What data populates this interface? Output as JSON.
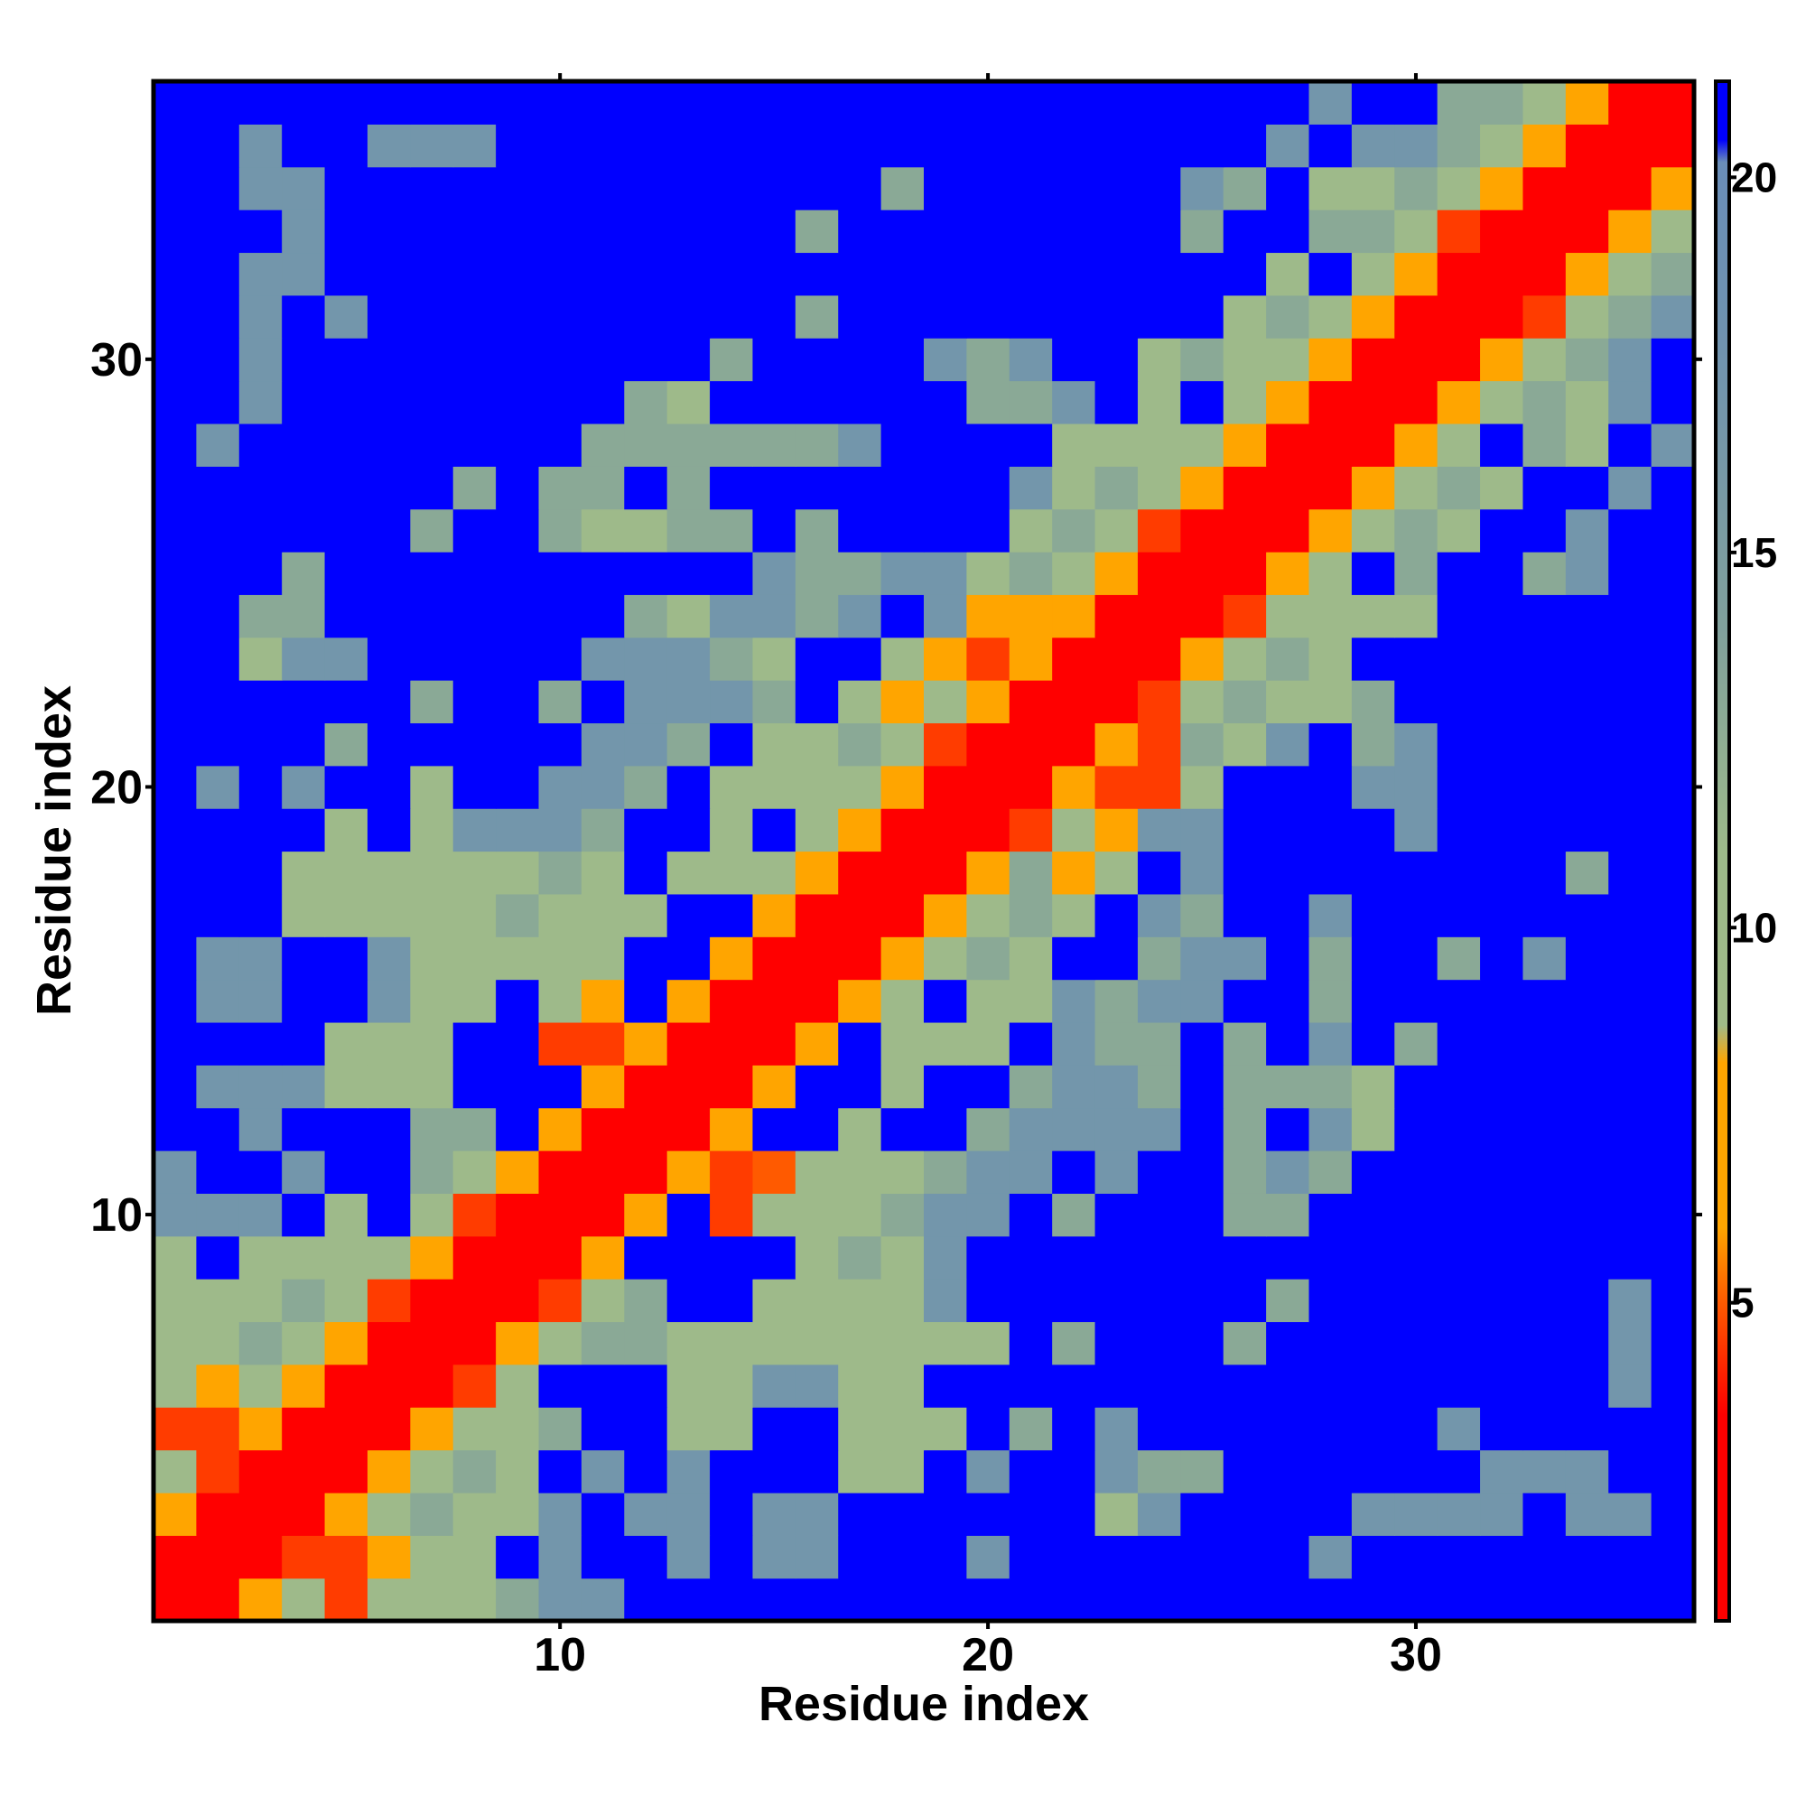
{
  "chart_data": {
    "type": "heatmap",
    "x_label": "Residue index",
    "y_label": "Residue index",
    "x": [
      1,
      2,
      3,
      4,
      5,
      6,
      7,
      8,
      9,
      10,
      11,
      12,
      13,
      14,
      15,
      16,
      17,
      18,
      19,
      20,
      21,
      22,
      23,
      24,
      25,
      26,
      27,
      28,
      29,
      30,
      31,
      32,
      33,
      34,
      35,
      36
    ],
    "y": [
      1,
      2,
      3,
      4,
      5,
      6,
      7,
      8,
      9,
      10,
      11,
      12,
      13,
      14,
      15,
      16,
      17,
      18,
      19,
      20,
      21,
      22,
      23,
      24,
      25,
      26,
      27,
      28,
      29,
      30,
      31,
      32,
      33,
      34,
      35,
      36
    ],
    "xlim": [
      0.5,
      36.5
    ],
    "ylim": [
      0.5,
      36.5
    ],
    "xticks": [
      10,
      20,
      30
    ],
    "yticks": [
      10,
      20,
      30
    ],
    "zlim": [
      0.76,
      21.28
    ],
    "zticks": [
      5,
      10,
      15,
      20
    ],
    "colorscale": [
      [
        0.76,
        "#ff0000"
      ],
      [
        3.5,
        "#ff0000"
      ],
      [
        5,
        "#ff5a00"
      ],
      [
        6,
        "#ffa500"
      ],
      [
        8.2,
        "#ffa500"
      ],
      [
        8.7,
        "#a0bb88"
      ],
      [
        11,
        "#9dba8a"
      ],
      [
        14,
        "#80a09c"
      ],
      [
        18,
        "#6f92b0"
      ],
      [
        20.2,
        "#6a8eb8"
      ],
      [
        20.5,
        "#0000ff"
      ],
      [
        21.28,
        "#0000ff"
      ]
    ],
    "z": [
      [
        2,
        2,
        7,
        10.5,
        4.5,
        10.5,
        10.5,
        10.5,
        13,
        17,
        17,
        21,
        21,
        21,
        21,
        21,
        21,
        21,
        21,
        21,
        21,
        21,
        21,
        21,
        21,
        21,
        21,
        21,
        21,
        21,
        21,
        21,
        21,
        21,
        21,
        21
      ],
      [
        2,
        2,
        2,
        4.5,
        4.5,
        7,
        10.5,
        10.5,
        21,
        17,
        21,
        21,
        17,
        21,
        17,
        17,
        21,
        21,
        21,
        17,
        21,
        21,
        21,
        21,
        21,
        21,
        21,
        17,
        21,
        21,
        21,
        21,
        21,
        21,
        21,
        21
      ],
      [
        7,
        2,
        2,
        2,
        7,
        10.5,
        13,
        10.5,
        10.5,
        17,
        21,
        17,
        17,
        21,
        17,
        17,
        21,
        21,
        21,
        21,
        21,
        21,
        10.5,
        17,
        21,
        21,
        21,
        21,
        17,
        17,
        17,
        17,
        21,
        17,
        17,
        21
      ],
      [
        10.5,
        4.5,
        2,
        2,
        2,
        7,
        10.5,
        13,
        10.5,
        21,
        17,
        21,
        17,
        21,
        21,
        21,
        10.5,
        10.5,
        21,
        17,
        21,
        21,
        17,
        13,
        13,
        21,
        21,
        21,
        21,
        21,
        21,
        17,
        17,
        17,
        21,
        21
      ],
      [
        4.5,
        4.5,
        7,
        2,
        2,
        2,
        7,
        10.5,
        10.5,
        13,
        21,
        21,
        10.5,
        10.5,
        21,
        21,
        10.5,
        10.5,
        10.5,
        21,
        13,
        21,
        17,
        21,
        21,
        21,
        21,
        21,
        21,
        21,
        17,
        21,
        21,
        21,
        21,
        21
      ],
      [
        10.5,
        7,
        10.5,
        7,
        2,
        2,
        2,
        4.5,
        10.5,
        21,
        21,
        21,
        10.5,
        10.5,
        17,
        17,
        10.5,
        10.5,
        21,
        21,
        21,
        21,
        21,
        21,
        21,
        21,
        21,
        21,
        21,
        21,
        21,
        21,
        21,
        21,
        17,
        21
      ],
      [
        10.5,
        10.5,
        13,
        10.5,
        7,
        2,
        2,
        2,
        7,
        10.5,
        13,
        13,
        10.5,
        10.5,
        10.5,
        10.5,
        10.5,
        10.5,
        10.5,
        10.5,
        21,
        13,
        21,
        21,
        21,
        13,
        21,
        21,
        21,
        21,
        21,
        21,
        21,
        21,
        17,
        21
      ],
      [
        10.5,
        10.5,
        10.5,
        13,
        10.5,
        4.5,
        2,
        2,
        2,
        4.5,
        10.5,
        13,
        21,
        21,
        10.5,
        10.5,
        10.5,
        10.5,
        17,
        21,
        21,
        21,
        21,
        21,
        21,
        21,
        13,
        21,
        21,
        21,
        21,
        21,
        21,
        21,
        17,
        21
      ],
      [
        10.5,
        21,
        10.5,
        10.5,
        10.5,
        10.5,
        7,
        2,
        2,
        2,
        7,
        21,
        21,
        21,
        21,
        10.5,
        13,
        10.5,
        17,
        21,
        21,
        21,
        21,
        21,
        21,
        21,
        21,
        21,
        21,
        21,
        21,
        21,
        21,
        21,
        21,
        21
      ],
      [
        17,
        17,
        17,
        21,
        10.5,
        21,
        10.5,
        4.5,
        2,
        2,
        2,
        7,
        21,
        4.5,
        10.5,
        10.5,
        10.5,
        13,
        17,
        17,
        21,
        13,
        21,
        21,
        21,
        13,
        13,
        21,
        21,
        21,
        21,
        21,
        21,
        21,
        21,
        21
      ],
      [
        17,
        21,
        21,
        17,
        21,
        21,
        13,
        10.5,
        7,
        2,
        2,
        2,
        7,
        4.5,
        5,
        10.5,
        10.5,
        10.5,
        13,
        17,
        17,
        21,
        17,
        21,
        21,
        13,
        17,
        13,
        21,
        21,
        21,
        21,
        21,
        21,
        21,
        21
      ],
      [
        21,
        21,
        17,
        21,
        21,
        21,
        13,
        13,
        21,
        7,
        2,
        2,
        2,
        7,
        21,
        21,
        10.5,
        21,
        21,
        13,
        17,
        17,
        17,
        17,
        21,
        13,
        21,
        17,
        10.5,
        21,
        21,
        21,
        21,
        21,
        21,
        21
      ],
      [
        21,
        17,
        17,
        17,
        10.5,
        10.5,
        10.5,
        21,
        21,
        21,
        7,
        2,
        2,
        2,
        7,
        21,
        21,
        10.5,
        21,
        21,
        13,
        17,
        17,
        13,
        21,
        13,
        13,
        13,
        10.5,
        21,
        21,
        21,
        21,
        21,
        21,
        21
      ],
      [
        21,
        21,
        21,
        21,
        10.5,
        10.5,
        10.5,
        21,
        21,
        4.5,
        4.5,
        7,
        2,
        2,
        2,
        7,
        21,
        10.5,
        10.5,
        10.5,
        21,
        17,
        13,
        13,
        21,
        13,
        21,
        17,
        21,
        13,
        21,
        21,
        21,
        21,
        21,
        21
      ],
      [
        21,
        17,
        17,
        21,
        21,
        17,
        10.5,
        10.5,
        21,
        10.5,
        7,
        21,
        7,
        2,
        2,
        2,
        7,
        10.5,
        21,
        10.5,
        10.5,
        17,
        13,
        17,
        17,
        21,
        21,
        13,
        21,
        21,
        21,
        21,
        21,
        21,
        21,
        21
      ],
      [
        21,
        17,
        17,
        21,
        21,
        17,
        10.5,
        10.5,
        10.5,
        10.5,
        10.5,
        21,
        21,
        7,
        2,
        2,
        2,
        7,
        10.5,
        13,
        10.5,
        21,
        21,
        13,
        17,
        17,
        21,
        13,
        21,
        21,
        13,
        21,
        17,
        21,
        21,
        21
      ],
      [
        21,
        21,
        21,
        10.5,
        10.5,
        10.5,
        10.5,
        10.5,
        13,
        10.5,
        10.5,
        10.5,
        21,
        21,
        7,
        2,
        2,
        2,
        7,
        10.5,
        13,
        10.5,
        21,
        17,
        13,
        21,
        21,
        17,
        21,
        21,
        21,
        21,
        21,
        21,
        21,
        21
      ],
      [
        21,
        21,
        21,
        10.5,
        10.5,
        10.5,
        10.5,
        10.5,
        10.5,
        13,
        10.5,
        21,
        10.5,
        10.5,
        10.5,
        7,
        2,
        2,
        2,
        7,
        13,
        7,
        10.5,
        21,
        17,
        21,
        21,
        21,
        21,
        21,
        21,
        21,
        21,
        13,
        21,
        21
      ],
      [
        21,
        21,
        21,
        21,
        10.5,
        21,
        10.5,
        17,
        17,
        17,
        13,
        21,
        21,
        10.5,
        21,
        10.5,
        7,
        2,
        2,
        2,
        4.5,
        10.5,
        7,
        17,
        17,
        21,
        21,
        21,
        21,
        17,
        21,
        21,
        21,
        21,
        21,
        21
      ],
      [
        21,
        17,
        21,
        17,
        21,
        21,
        10.5,
        21,
        21,
        17,
        17,
        13,
        21,
        10.5,
        10.5,
        10.5,
        10.5,
        7,
        2,
        2,
        2,
        7,
        4.5,
        4.5,
        10.5,
        21,
        21,
        21,
        17,
        17,
        21,
        21,
        21,
        21,
        21,
        21
      ],
      [
        21,
        21,
        21,
        21,
        13,
        21,
        21,
        21,
        21,
        21,
        17,
        17,
        13,
        21,
        10.5,
        10.5,
        13,
        10.5,
        4.5,
        2,
        2,
        2,
        7,
        4.5,
        13,
        10.5,
        17,
        21,
        13,
        17,
        21,
        21,
        21,
        21,
        21,
        21
      ],
      [
        21,
        21,
        21,
        21,
        21,
        21,
        13,
        21,
        21,
        13,
        21,
        17,
        17,
        17,
        13,
        21,
        10.5,
        7,
        10.5,
        7,
        2,
        2,
        2,
        4.5,
        10.5,
        13,
        10.5,
        10.5,
        13,
        21,
        21,
        21,
        21,
        21,
        21,
        21
      ],
      [
        21,
        21,
        10.5,
        17,
        17,
        21,
        21,
        21,
        21,
        21,
        17,
        17,
        17,
        13,
        10.5,
        21,
        21,
        10.5,
        7,
        4.5,
        7,
        2,
        2,
        2,
        7,
        10.5,
        13,
        10.5,
        21,
        21,
        21,
        21,
        21,
        21,
        21,
        21
      ],
      [
        21,
        21,
        13,
        13,
        21,
        21,
        21,
        21,
        21,
        21,
        21,
        13,
        10.5,
        17,
        17,
        13,
        17,
        21,
        17,
        7,
        7,
        7,
        2,
        2,
        2,
        4.5,
        10.5,
        10.5,
        10.5,
        10.5,
        21,
        21,
        21,
        21,
        21,
        21
      ],
      [
        21,
        21,
        21,
        13,
        21,
        21,
        21,
        21,
        21,
        21,
        21,
        21,
        21,
        21,
        17,
        13,
        13,
        17,
        17,
        10.5,
        13,
        10.5,
        7,
        2,
        2,
        2,
        7,
        10.5,
        21,
        13,
        21,
        21,
        13,
        17,
        21,
        21
      ],
      [
        21,
        21,
        21,
        21,
        21,
        21,
        13,
        21,
        21,
        13,
        10.5,
        10.5,
        13,
        13,
        21,
        13,
        21,
        21,
        21,
        21,
        10.5,
        13,
        10.5,
        4.5,
        2,
        2,
        2,
        7,
        10.5,
        13,
        10.5,
        21,
        21,
        17,
        21,
        21
      ],
      [
        21,
        21,
        21,
        21,
        21,
        21,
        21,
        13,
        21,
        13,
        13,
        21,
        13,
        21,
        21,
        21,
        21,
        21,
        21,
        21,
        17,
        10.5,
        13,
        10.5,
        7,
        2,
        2,
        2,
        7,
        10.5,
        13,
        10.5,
        21,
        21,
        17,
        21
      ],
      [
        21,
        17,
        21,
        21,
        21,
        21,
        21,
        21,
        21,
        21,
        13,
        13,
        13,
        13,
        13,
        13,
        17,
        21,
        21,
        21,
        21,
        10.5,
        10.5,
        10.5,
        10.5,
        7,
        2,
        2,
        2,
        7,
        10.5,
        21,
        13,
        10.5,
        21,
        17
      ],
      [
        21,
        21,
        17,
        21,
        21,
        21,
        21,
        21,
        21,
        21,
        21,
        13,
        10.5,
        21,
        21,
        21,
        21,
        21,
        21,
        13,
        13,
        17,
        21,
        10.5,
        21,
        10.5,
        7,
        2,
        2,
        2,
        7,
        10.5,
        13,
        10.5,
        17,
        21
      ],
      [
        21,
        21,
        17,
        21,
        21,
        21,
        21,
        21,
        21,
        21,
        21,
        21,
        21,
        13,
        21,
        21,
        21,
        21,
        17,
        13,
        17,
        21,
        21,
        10.5,
        13,
        10.5,
        10.5,
        7,
        2,
        2,
        2,
        7,
        10.5,
        13,
        17,
        21
      ],
      [
        21,
        21,
        17,
        21,
        17,
        21,
        21,
        21,
        21,
        21,
        21,
        21,
        21,
        21,
        21,
        13,
        21,
        21,
        21,
        21,
        21,
        21,
        21,
        21,
        21,
        10.5,
        13,
        10.5,
        7,
        2,
        2,
        2,
        4.5,
        10.5,
        13,
        17
      ],
      [
        21,
        21,
        17,
        17,
        21,
        21,
        21,
        21,
        21,
        21,
        21,
        21,
        21,
        21,
        21,
        21,
        21,
        21,
        21,
        21,
        21,
        21,
        21,
        21,
        21,
        21,
        10.5,
        21,
        10.5,
        7,
        2,
        2,
        2,
        7,
        10.5,
        13
      ],
      [
        21,
        21,
        21,
        17,
        21,
        21,
        21,
        21,
        21,
        21,
        21,
        21,
        21,
        21,
        21,
        13,
        21,
        21,
        21,
        21,
        21,
        21,
        21,
        21,
        13,
        21,
        21,
        13,
        13,
        10.5,
        4.5,
        2,
        2,
        2,
        7,
        10.5
      ],
      [
        21,
        21,
        17,
        17,
        21,
        21,
        21,
        21,
        21,
        21,
        21,
        21,
        21,
        21,
        21,
        21,
        21,
        13,
        21,
        21,
        21,
        21,
        21,
        21,
        17,
        13,
        21,
        10.5,
        10.5,
        13,
        10.5,
        7,
        2,
        2,
        2,
        7
      ],
      [
        21,
        21,
        17,
        21,
        21,
        17,
        17,
        17,
        21,
        21,
        21,
        21,
        21,
        21,
        21,
        21,
        21,
        21,
        21,
        21,
        21,
        21,
        21,
        21,
        21,
        21,
        17,
        21,
        17,
        17,
        13,
        10.5,
        7,
        2,
        2,
        2
      ],
      [
        21,
        21,
        21,
        21,
        21,
        21,
        21,
        21,
        21,
        21,
        21,
        21,
        21,
        21,
        21,
        21,
        21,
        21,
        21,
        21,
        21,
        21,
        21,
        21,
        21,
        21,
        21,
        17,
        21,
        21,
        13,
        13,
        10.5,
        7,
        2,
        2
      ]
    ]
  }
}
